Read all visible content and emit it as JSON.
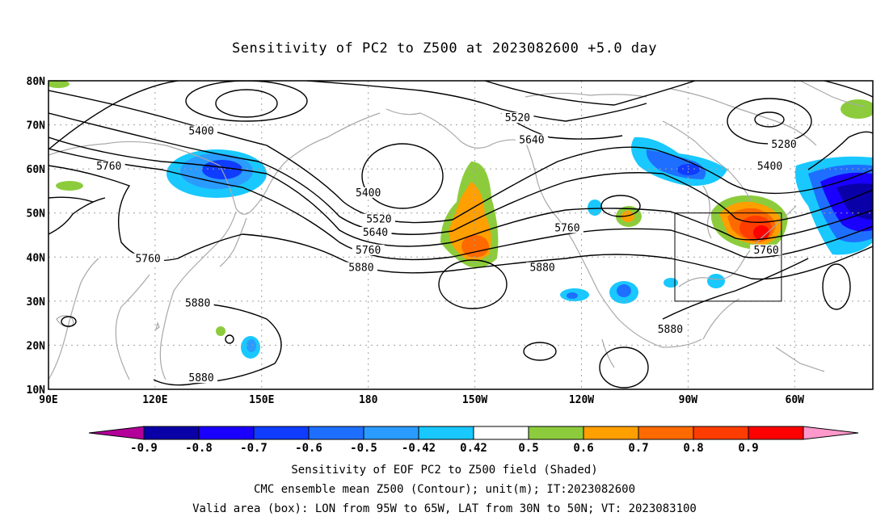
{
  "title": "Sensitivity of PC2 to Z500 at 2023082600 +5.0 day",
  "map": {
    "lat_labels": [
      "80N",
      "70N",
      "60N",
      "50N",
      "40N",
      "30N",
      "20N",
      "10N"
    ],
    "lon_labels": [
      "90E",
      "120E",
      "150E",
      "180",
      "150W",
      "120W",
      "90W",
      "60W"
    ],
    "lon_range_deg_east": [
      90,
      322
    ],
    "lat_range": [
      10,
      80
    ],
    "grid": true,
    "valid_box": {
      "lon_from": "95W",
      "lon_to": "65W",
      "lat_from": "30N",
      "lat_to": "50N"
    },
    "contour_labels": [
      {
        "text": "5400",
        "lon": 133,
        "lat": 68
      },
      {
        "text": "5760",
        "lon": 107,
        "lat": 60
      },
      {
        "text": "5760",
        "lon": 118,
        "lat": 39
      },
      {
        "text": "5880",
        "lon": 132,
        "lat": 29
      },
      {
        "text": "5880",
        "lon": 133,
        "lat": 12
      },
      {
        "text": "5520",
        "lon": 222,
        "lat": 71
      },
      {
        "text": "5640",
        "lon": 226,
        "lat": 66
      },
      {
        "text": "5400",
        "lon": 180,
        "lat": 54
      },
      {
        "text": "5520",
        "lon": 183,
        "lat": 48
      },
      {
        "text": "5640",
        "lon": 182,
        "lat": 45
      },
      {
        "text": "5760",
        "lon": 180,
        "lat": 41
      },
      {
        "text": "5880",
        "lon": 178,
        "lat": 37
      },
      {
        "text": "5760",
        "lon": 236,
        "lat": 46
      },
      {
        "text": "5880",
        "lon": 229,
        "lat": 37
      },
      {
        "text": "5280",
        "lon": 297,
        "lat": 65
      },
      {
        "text": "5400",
        "lon": 293,
        "lat": 60
      },
      {
        "text": "5760",
        "lon": 292,
        "lat": 41
      },
      {
        "text": "5880",
        "lon": 265,
        "lat": 23
      }
    ]
  },
  "colorbar": {
    "labels": [
      "-0.9",
      "-0.8",
      "-0.7",
      "-0.6",
      "-0.5",
      "-0.42",
      "0.42",
      "0.5",
      "0.6",
      "0.7",
      "0.8",
      "0.9"
    ],
    "colors": [
      "#b3009a",
      "#0a00a8",
      "#1a00ff",
      "#0f3cff",
      "#1e6fff",
      "#2a9bff",
      "#19c8ff",
      "#ffffff",
      "#8ccc3c",
      "#ff9f00",
      "#ff6a00",
      "#ff3d00",
      "#ff0000",
      "#ff99cc"
    ]
  },
  "captions": {
    "line1": "Sensitivity of EOF PC2 to Z500 field (Shaded)",
    "line2": "CMC ensemble mean Z500 (Contour); unit(m); IT:2023082600",
    "line3": "Valid area (box): LON from 95W to 65W, LAT from 30N to 50N; VT: 2023083100"
  }
}
